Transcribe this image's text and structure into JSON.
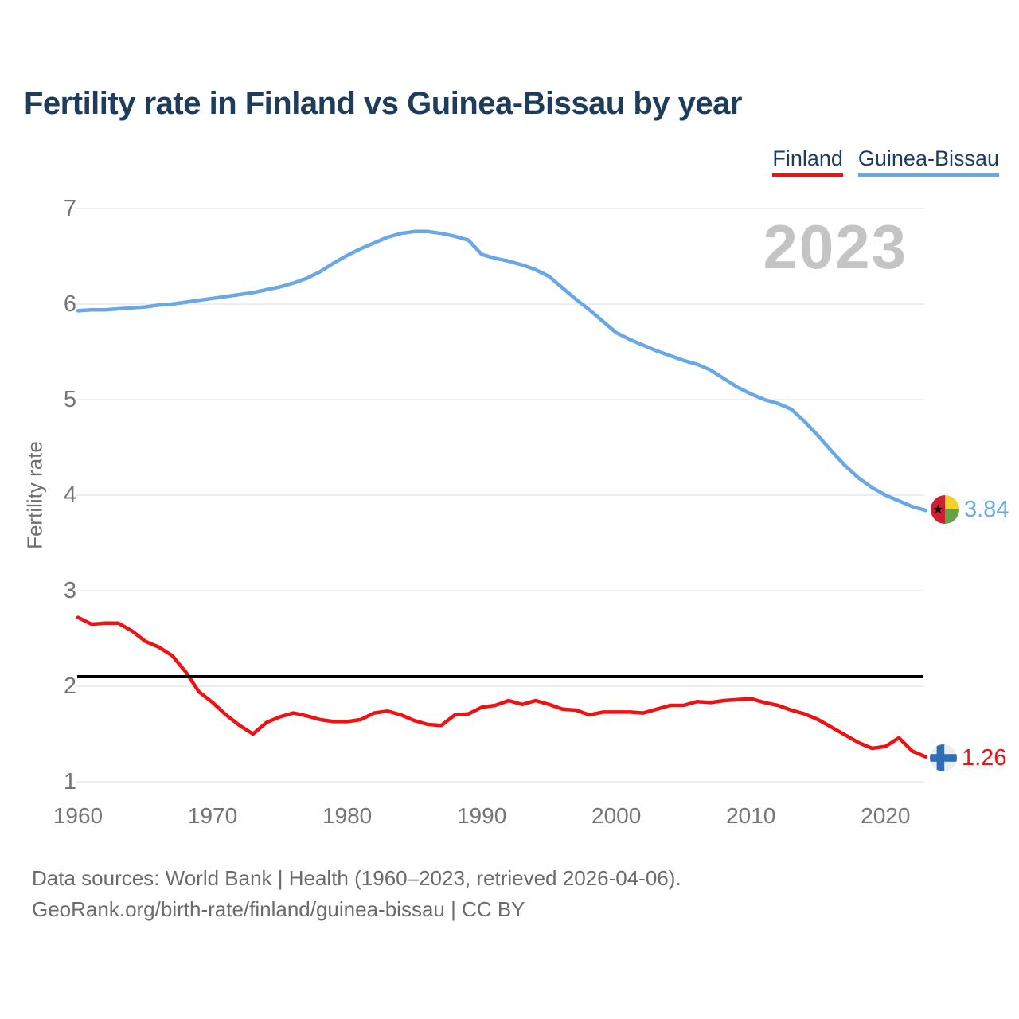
{
  "header": {
    "title": "Fertility rate in Finland vs Guinea-Bissau by year"
  },
  "legend": {
    "items": [
      {
        "label": "Finland",
        "color": "#f01212"
      },
      {
        "label": "Guinea-Bissau",
        "color": "#69a8e6"
      }
    ]
  },
  "colors": {
    "finland_red": "#f01212",
    "guinea_bissau_blue": "#69a8e6",
    "grid": "#e9e9e9",
    "reference_line": "#000000",
    "watermark_gray": "#c4c4c4",
    "navy_text": "#1e3c5c",
    "tick_text": "#757575"
  },
  "icons": {
    "finland_marker": "finland-flag-icon",
    "guinea_bissau_marker": "guinea-bissau-flag-icon"
  },
  "annotations": {
    "watermark": "2023",
    "end_labels": {
      "finland": "1.26",
      "guinea_bissau": "3.84"
    }
  },
  "footer": {
    "line1": "Data sources: World Bank | Health (1960–2023, retrieved 2026-04-06).",
    "line2": "GeoRank.org/birth-rate/finland/guinea-bissau | CC BY"
  },
  "chart_data": {
    "type": "line",
    "title": "Fertility rate in Finland vs Guinea-Bissau by year",
    "xlabel": "",
    "ylabel": "Fertility rate",
    "xlim": [
      1960,
      2023
    ],
    "ylim": [
      1,
      7
    ],
    "yticks": [
      7,
      6,
      5,
      4,
      3,
      2,
      1
    ],
    "xticks": [
      1960,
      1970,
      1980,
      1990,
      2000,
      2010,
      2020
    ],
    "grid": "horizontal",
    "legend_position": "top-right",
    "watermark": "2023",
    "reference_line": 2.1,
    "x": [
      1960,
      1961,
      1962,
      1963,
      1964,
      1965,
      1966,
      1967,
      1968,
      1969,
      1970,
      1971,
      1972,
      1973,
      1974,
      1975,
      1976,
      1977,
      1978,
      1979,
      1980,
      1981,
      1982,
      1983,
      1984,
      1985,
      1986,
      1987,
      1988,
      1989,
      1990,
      1991,
      1992,
      1993,
      1994,
      1995,
      1996,
      1997,
      1998,
      1999,
      2000,
      2001,
      2002,
      2003,
      2004,
      2005,
      2006,
      2007,
      2008,
      2009,
      2010,
      2011,
      2012,
      2013,
      2014,
      2015,
      2016,
      2017,
      2018,
      2019,
      2020,
      2021,
      2022,
      2023
    ],
    "series": [
      {
        "name": "Finland",
        "color": "#f01212",
        "end_label": "1.26",
        "values": [
          2.72,
          2.65,
          2.66,
          2.66,
          2.58,
          2.47,
          2.41,
          2.32,
          2.15,
          1.94,
          1.83,
          1.7,
          1.59,
          1.5,
          1.62,
          1.68,
          1.72,
          1.69,
          1.65,
          1.63,
          1.63,
          1.65,
          1.72,
          1.74,
          1.7,
          1.64,
          1.6,
          1.59,
          1.7,
          1.71,
          1.78,
          1.8,
          1.85,
          1.81,
          1.85,
          1.81,
          1.76,
          1.75,
          1.7,
          1.73,
          1.73,
          1.73,
          1.72,
          1.76,
          1.8,
          1.8,
          1.84,
          1.83,
          1.85,
          1.86,
          1.87,
          1.83,
          1.8,
          1.75,
          1.71,
          1.65,
          1.57,
          1.49,
          1.41,
          1.35,
          1.37,
          1.46,
          1.32,
          1.26
        ]
      },
      {
        "name": "Guinea-Bissau",
        "color": "#69a8e6",
        "end_label": "3.84",
        "values": [
          5.93,
          5.94,
          5.94,
          5.95,
          5.96,
          5.97,
          5.99,
          6.0,
          6.02,
          6.04,
          6.06,
          6.08,
          6.1,
          6.12,
          6.15,
          6.18,
          6.22,
          6.27,
          6.34,
          6.43,
          6.51,
          6.58,
          6.64,
          6.7,
          6.74,
          6.76,
          6.76,
          6.74,
          6.71,
          6.67,
          6.52,
          6.48,
          6.45,
          6.41,
          6.36,
          6.29,
          6.17,
          6.05,
          5.94,
          5.82,
          5.7,
          5.63,
          5.57,
          5.51,
          5.46,
          5.41,
          5.37,
          5.31,
          5.22,
          5.13,
          5.06,
          5.0,
          4.96,
          4.9,
          4.77,
          4.62,
          4.46,
          4.31,
          4.18,
          4.08,
          4.0,
          3.94,
          3.88,
          3.84
        ]
      }
    ]
  }
}
